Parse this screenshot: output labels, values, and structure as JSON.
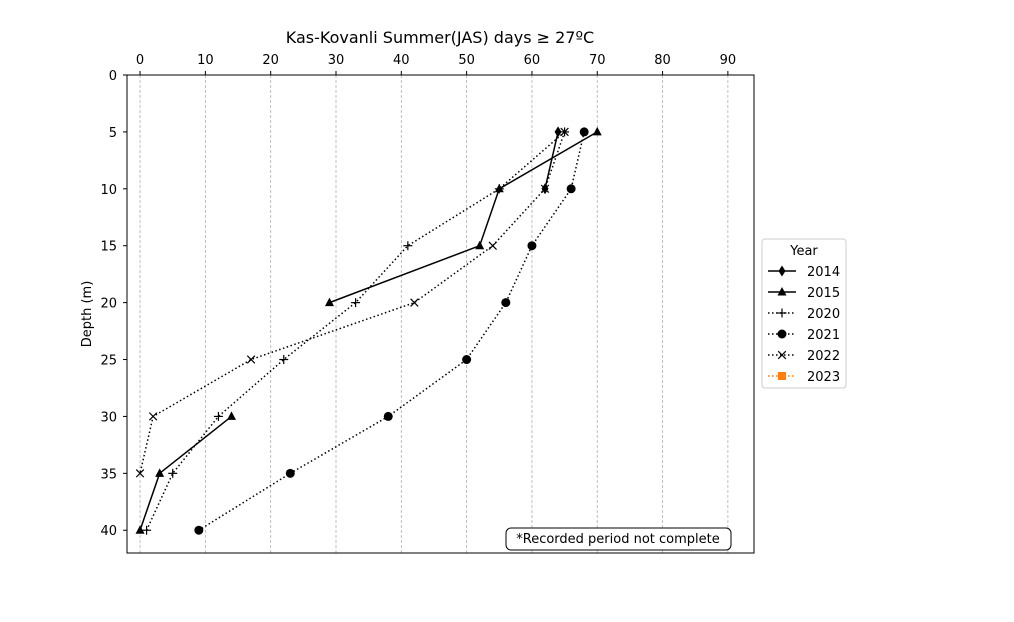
{
  "chart_data": {
    "type": "line",
    "title": "Kas-Kovanli Summer(JAS) days ≥ 27ºC",
    "xlabel": "",
    "ylabel": "Depth (m)",
    "x_axis_position": "top",
    "y_inverted": true,
    "xlim": [
      -2,
      94
    ],
    "ylim": [
      0,
      42
    ],
    "x_ticks": [
      0,
      10,
      20,
      30,
      40,
      50,
      60,
      70,
      80,
      90
    ],
    "y_ticks": [
      0,
      5,
      10,
      15,
      20,
      25,
      30,
      35,
      40
    ],
    "grid": "vertical-dashed",
    "legend": {
      "title": "Year",
      "placement": "right"
    },
    "annotation": "*Recorded period not complete",
    "series": [
      {
        "name": "2014",
        "color": "#000000",
        "linestyle": "solid",
        "marker": "diamond",
        "points": [
          [
            64,
            5
          ],
          [
            62,
            10
          ]
        ]
      },
      {
        "name": "2015",
        "color": "#000000",
        "linestyle": "solid",
        "marker": "triangle",
        "points": [
          [
            70,
            5
          ],
          [
            55,
            10
          ],
          [
            52,
            15
          ],
          [
            29,
            20
          ],
          null,
          [
            14,
            30
          ],
          [
            3,
            35
          ],
          [
            0,
            40
          ]
        ]
      },
      {
        "name": "2020",
        "color": "#000000",
        "linestyle": "dotted",
        "marker": "plus",
        "points": [
          [
            65,
            5
          ],
          [
            55,
            10
          ],
          [
            41,
            15
          ],
          [
            33,
            20
          ],
          [
            22,
            25
          ],
          [
            12,
            30
          ],
          [
            5,
            35
          ],
          [
            1,
            40
          ]
        ]
      },
      {
        "name": "2021",
        "color": "#000000",
        "linestyle": "dotted",
        "marker": "circle",
        "points": [
          [
            68,
            5
          ],
          [
            66,
            10
          ],
          [
            60,
            15
          ],
          [
            56,
            20
          ],
          [
            50,
            25
          ],
          [
            38,
            30
          ],
          [
            23,
            35
          ],
          [
            9,
            40
          ]
        ]
      },
      {
        "name": "2022",
        "color": "#000000",
        "linestyle": "dotted",
        "marker": "x",
        "points": [
          [
            65,
            5
          ],
          [
            62,
            10
          ],
          [
            54,
            15
          ],
          [
            42,
            20
          ],
          [
            17,
            25
          ],
          [
            2,
            30
          ],
          [
            0,
            35
          ]
        ]
      },
      {
        "name": "2023",
        "color": "#ff7f0e",
        "linestyle": "dotted",
        "marker": "square",
        "points": []
      }
    ]
  }
}
